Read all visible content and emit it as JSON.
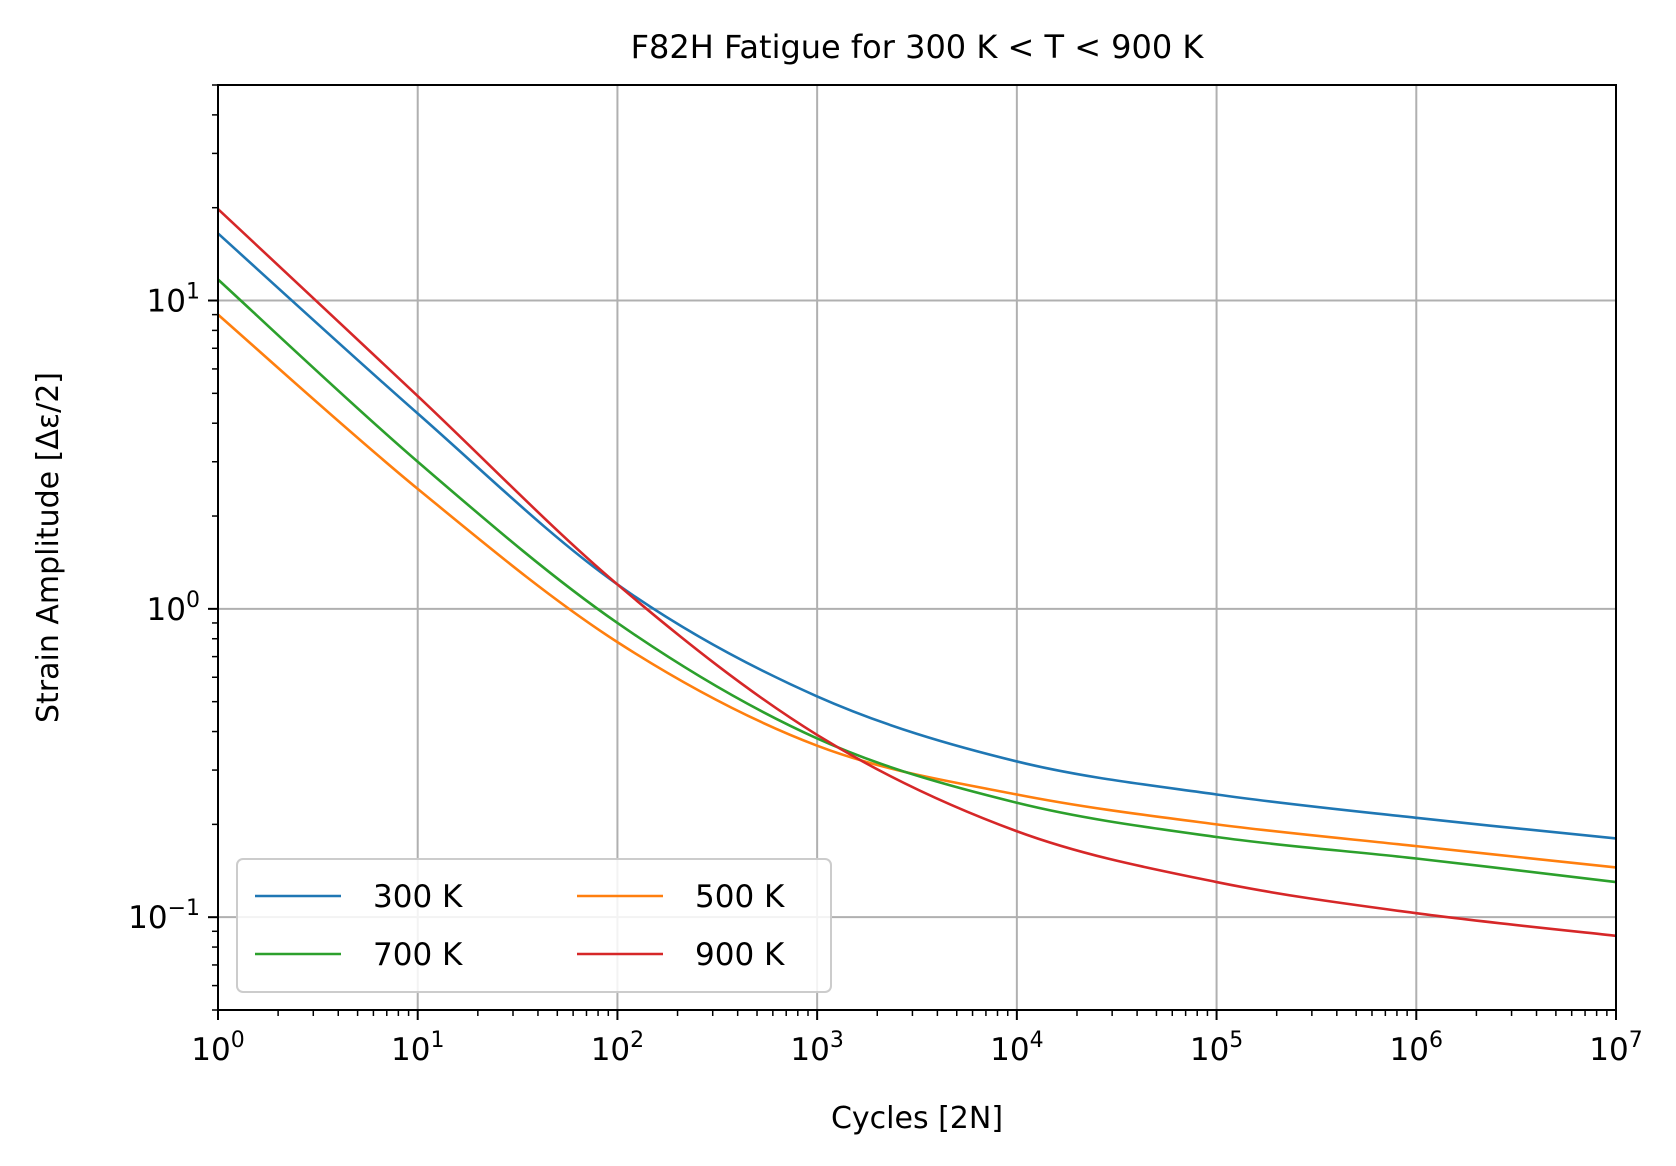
{
  "chart_data": {
    "type": "line",
    "title": "F82H Fatigue for 300 K < T < 900 K",
    "xlabel": "Cycles [2N]",
    "ylabel": "Strain Amplitude [Δε/2]",
    "xscale": "log",
    "yscale": "log",
    "xlim": [
      1,
      10000000
    ],
    "ylim": [
      0.05,
      50
    ],
    "grid": true,
    "legend_position": "lower-left",
    "legend_columns": 2,
    "x_ticks": [
      {
        "base": "10",
        "exp": "0"
      },
      {
        "base": "10",
        "exp": "1"
      },
      {
        "base": "10",
        "exp": "2"
      },
      {
        "base": "10",
        "exp": "3"
      },
      {
        "base": "10",
        "exp": "4"
      },
      {
        "base": "10",
        "exp": "5"
      },
      {
        "base": "10",
        "exp": "6"
      },
      {
        "base": "10",
        "exp": "7"
      }
    ],
    "y_ticks": [
      {
        "base": "10",
        "exp": "−1"
      },
      {
        "base": "10",
        "exp": "0"
      },
      {
        "base": "10",
        "exp": "1"
      }
    ],
    "x": [
      1,
      10,
      100,
      1000,
      10000,
      100000,
      1000000,
      10000000
    ],
    "series": [
      {
        "name": "300 K",
        "color": "#1f77b4",
        "values": [
          16.5,
          4.3,
          1.2,
          0.52,
          0.32,
          0.25,
          0.21,
          0.18
        ]
      },
      {
        "name": "500 K",
        "color": "#ff7f0e",
        "values": [
          9.0,
          2.45,
          0.78,
          0.36,
          0.25,
          0.2,
          0.17,
          0.145
        ]
      },
      {
        "name": "700 K",
        "color": "#2ca02c",
        "values": [
          11.7,
          3.0,
          0.9,
          0.38,
          0.235,
          0.182,
          0.155,
          0.13
        ]
      },
      {
        "name": "900 K",
        "color": "#d62728",
        "values": [
          19.8,
          4.9,
          1.2,
          0.39,
          0.19,
          0.13,
          0.103,
          0.087
        ]
      }
    ]
  }
}
